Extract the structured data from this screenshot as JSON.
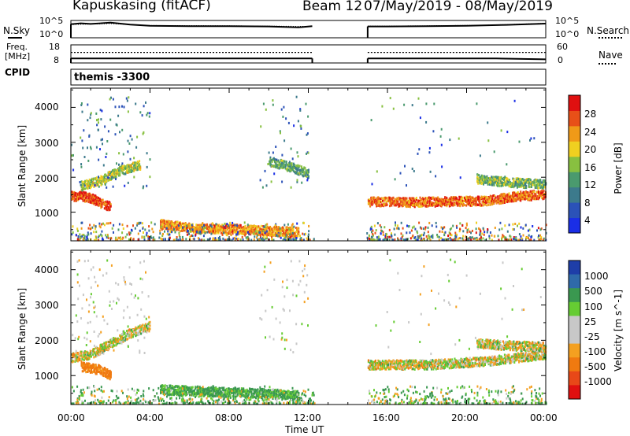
{
  "header": {
    "station": "Kapuskasing (fitACF)",
    "beam": "Beam 12",
    "dates": "07/May/2019 - 08/May/2019"
  },
  "strip_labels": {
    "nsky": "N.Sky",
    "nsearch": "N.Search",
    "freq_line1": "Freq.",
    "freq_line2": "[MHz]",
    "nave": "Nave",
    "cpid": "CPID",
    "cpid_value": "themis -3300",
    "noise_ticks_left": [
      "10^5",
      "10^0"
    ],
    "noise_ticks_right": [
      "10^5",
      "10^0"
    ],
    "freq_ticks_left": [
      "18",
      "8"
    ],
    "nave_ticks_right": [
      "60",
      "0"
    ]
  },
  "time_axis": {
    "label": "Time UT",
    "ticks": [
      "00:00",
      "04:00",
      "08:00",
      "12:00",
      "16:00",
      "20:00",
      "00:00"
    ]
  },
  "colors": {
    "power": [
      "#1a2ee6",
      "#2b52b8",
      "#3c7a8c",
      "#4a9a6e",
      "#88c040",
      "#f0d020",
      "#f09a18",
      "#e85018",
      "#e01010"
    ],
    "velocity": [
      "#1e3ea8",
      "#2f6aaa",
      "#3a9850",
      "#66cc33",
      "#c8c8c8",
      "#c8c8c8",
      "#f4a020",
      "#f07a10",
      "#e84818",
      "#e01010"
    ]
  },
  "chart_data": [
    {
      "type": "line",
      "panel": "noise",
      "series": [
        {
          "name": "N.Sky",
          "x": [
            0,
            0.5,
            1,
            2,
            3,
            4,
            6,
            8,
            10,
            11,
            11.5,
            12.2,
            15,
            16,
            18,
            20,
            22,
            24
          ],
          "y": [
            4.3,
            4.6,
            4.4,
            4.8,
            4.2,
            3.8,
            3.7,
            3.7,
            3.6,
            3.4,
            3.3,
            3.7,
            3.6,
            3.6,
            3.7,
            3.8,
            4.1,
            4.5
          ]
        },
        {
          "name": "N.Search",
          "x": [
            0,
            2,
            4,
            8,
            12,
            15,
            18,
            21,
            24
          ],
          "y": [
            4.2,
            4.5,
            3.9,
            3.8,
            3.6,
            3.7,
            3.8,
            4.0,
            4.6
          ]
        }
      ]
    },
    {
      "type": "line",
      "panel": "frequency",
      "series": [
        {
          "name": "Freq.",
          "x": [
            0,
            12.2,
            15,
            21.5,
            24
          ],
          "y": [
            10.5,
            10.5,
            10.5,
            10.5,
            10.0
          ]
        },
        {
          "name": "Nave",
          "x": [
            0,
            12.2,
            15,
            24
          ],
          "y": [
            35,
            35,
            35,
            35
          ]
        }
      ]
    },
    {
      "type": "heatmap",
      "panel": "power",
      "title": "Power",
      "ylabel": "Slant Range [km]",
      "xlabel": "Time UT",
      "xlim": [
        0,
        24
      ],
      "ylim": [
        180,
        4550
      ],
      "yticks": [
        1000,
        2000,
        3000,
        4000
      ],
      "colorbar": {
        "label": "Power [dB]",
        "ticks": [
          4,
          8,
          12,
          16,
          20,
          24,
          28
        ],
        "range": [
          0,
          30
        ]
      },
      "data_gap": [
        12.3,
        14.9
      ],
      "features": [
        {
          "t": [
            0,
            0.5,
            1,
            1.5,
            2
          ],
          "range": [
            1450,
            1450,
            1400,
            1250,
            1150
          ],
          "value": 26
        },
        {
          "t": [
            0.5,
            1.5,
            2.5,
            3.5
          ],
          "range": [
            1750,
            1900,
            2200,
            2350
          ],
          "value": 16
        },
        {
          "t": [
            4.5,
            5.5,
            6.5,
            8,
            10,
            11.5
          ],
          "range": [
            650,
            580,
            520,
            520,
            460,
            420
          ],
          "value": 22
        },
        {
          "t": [
            15,
            17,
            19,
            21,
            22.5,
            24
          ],
          "range": [
            1300,
            1280,
            1300,
            1320,
            1450,
            1500
          ],
          "value": 24
        },
        {
          "t": [
            20.5,
            22,
            24
          ],
          "range": [
            1950,
            1850,
            1800
          ],
          "value": 14
        },
        {
          "t": [
            10,
            11,
            12
          ],
          "range": [
            2450,
            2300,
            2100
          ],
          "value": 12
        }
      ]
    },
    {
      "type": "heatmap",
      "panel": "velocity",
      "title": "Velocity",
      "ylabel": "Slant Range [km]",
      "xlabel": "Time UT",
      "xlim": [
        0,
        24
      ],
      "ylim": [
        180,
        4550
      ],
      "yticks": [
        1000,
        2000,
        3000,
        4000
      ],
      "colorbar": {
        "label": "Velocity [m s^-1]",
        "ticks": [
          1000,
          500,
          100,
          25,
          -25,
          -100,
          -500,
          -1000
        ],
        "range": [
          -1200,
          1200
        ]
      },
      "data_gap": [
        12.3,
        14.9
      ],
      "features": [
        {
          "t": [
            0,
            1,
            2,
            3,
            4
          ],
          "range": [
            1500,
            1600,
            1900,
            2200,
            2400
          ],
          "value": 0
        },
        {
          "t": [
            0.5,
            1.5,
            2
          ],
          "range": [
            1250,
            1150,
            1000
          ],
          "value": -200
        },
        {
          "t": [
            4.5,
            6,
            8,
            10,
            11.5
          ],
          "range": [
            600,
            560,
            520,
            480,
            430
          ],
          "value": 150
        },
        {
          "t": [
            15,
            18,
            21,
            24
          ],
          "range": [
            1300,
            1300,
            1400,
            1600
          ],
          "value": 0
        },
        {
          "t": [
            20.5,
            22,
            24
          ],
          "range": [
            1900,
            1850,
            1800
          ],
          "value": 0
        }
      ]
    }
  ]
}
